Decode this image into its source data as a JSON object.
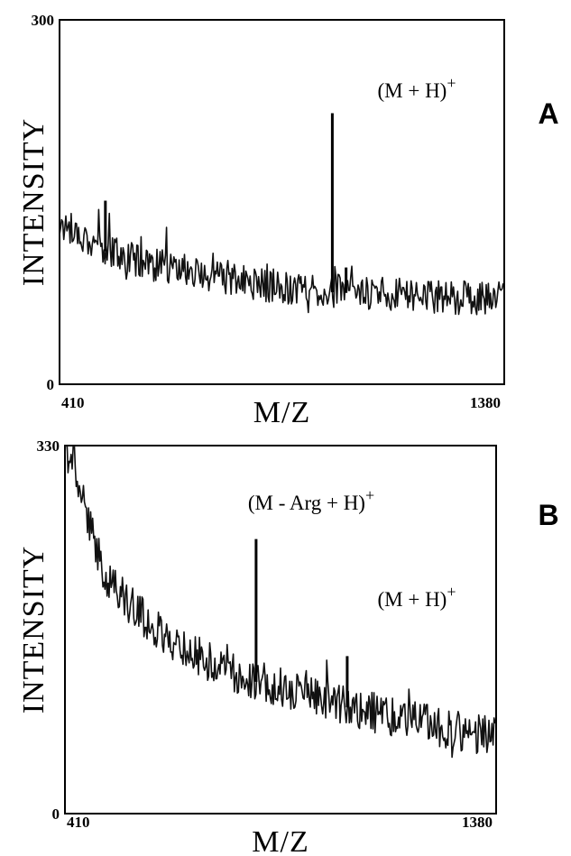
{
  "chart_data": [
    {
      "type": "line",
      "panel_label": "A",
      "xlabel": "M/Z",
      "ylabel": "INTENSITY",
      "xlim": [
        410,
        1380
      ],
      "ylim": [
        0,
        300
      ],
      "x_tick_labels": [
        "410",
        "1380"
      ],
      "y_tick_labels": [
        "0",
        "300"
      ],
      "grid": false,
      "baseline": {
        "x": [
          410,
          450,
          500,
          550,
          600,
          650,
          700,
          750,
          800,
          850,
          900,
          950,
          1000,
          1050,
          1100,
          1150,
          1200,
          1250,
          1300,
          1350,
          1380
        ],
        "y": [
          130,
          125,
          112,
          105,
          100,
          96,
          92,
          88,
          85,
          82,
          80,
          78,
          77,
          76,
          75,
          74,
          73,
          72,
          71,
          70,
          70
        ]
      },
      "peaks": [
        {
          "x": 510,
          "y": 150
        },
        {
          "x": 1005,
          "y": 222
        },
        {
          "x": 1035,
          "y": 95
        }
      ],
      "annotations": [
        {
          "text": "(M + H)",
          "sup": "+",
          "x": 1005,
          "y": 253
        }
      ]
    },
    {
      "type": "line",
      "panel_label": "B",
      "xlabel": "M/Z",
      "ylabel": "INTENSITY",
      "xlim": [
        410,
        1380
      ],
      "ylim": [
        0,
        330
      ],
      "x_tick_labels": [
        "410",
        "1380"
      ],
      "y_tick_labels": [
        "0",
        "330"
      ],
      "grid": false,
      "baseline": {
        "x": [
          410,
          440,
          470,
          500,
          550,
          600,
          650,
          700,
          750,
          800,
          850,
          900,
          950,
          1000,
          1050,
          1100,
          1150,
          1200,
          1250,
          1300,
          1350,
          1380
        ],
        "y": [
          330,
          300,
          250,
          215,
          190,
          170,
          155,
          143,
          133,
          125,
          118,
          112,
          106,
          101,
          96,
          91,
          86,
          82,
          78,
          74,
          70,
          68
        ]
      },
      "peaks": [
        {
          "x": 840,
          "y": 245
        },
        {
          "x": 1045,
          "y": 140
        }
      ],
      "annotations": [
        {
          "text": "(M - Arg + H)",
          "sup": "+",
          "x": 840,
          "y": 266
        },
        {
          "text": "(M + H)",
          "sup": "+",
          "x": 1045,
          "y": 168
        }
      ]
    }
  ]
}
